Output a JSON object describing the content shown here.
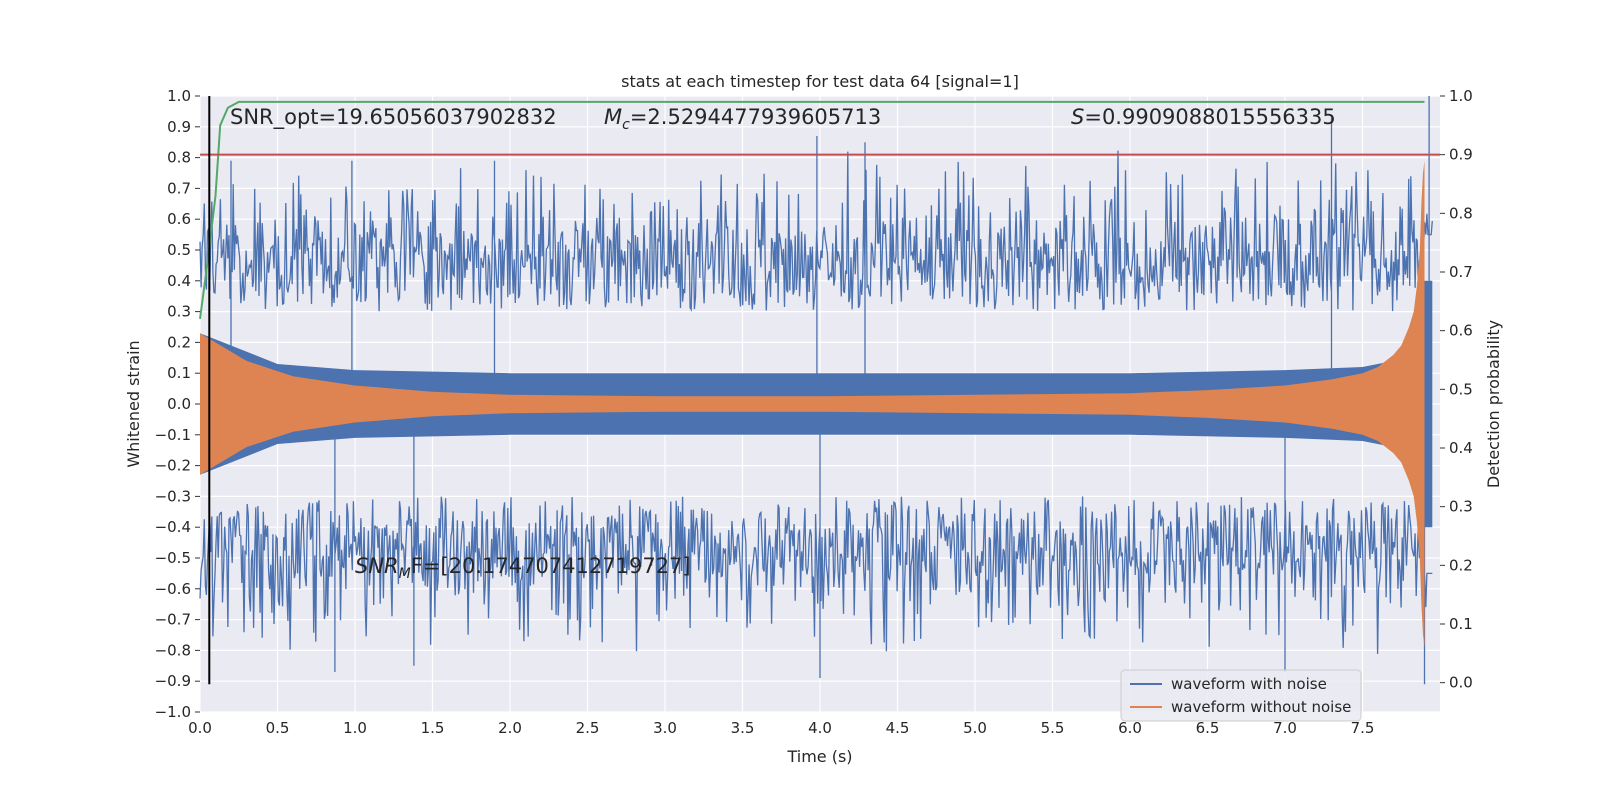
{
  "chart_data": {
    "type": "line",
    "title": "stats at each timestep for test data 64 [signal=1]",
    "xlabel": "Time (s)",
    "ylabel": "Whitened strain",
    "y2label": "Detection probability",
    "xlim": [
      0.0,
      8.0
    ],
    "ylim": [
      -1.0,
      1.0
    ],
    "y2lim": [
      -0.05,
      1.0
    ],
    "x_ticks": [
      0.0,
      0.5,
      1.0,
      1.5,
      2.0,
      2.5,
      3.0,
      3.5,
      4.0,
      4.5,
      5.0,
      5.5,
      6.0,
      6.5,
      7.0,
      7.5
    ],
    "y_ticks": [
      -1.0,
      -0.9,
      -0.8,
      -0.7,
      -0.6,
      -0.5,
      -0.4,
      -0.3,
      -0.2,
      -0.1,
      0.0,
      0.1,
      0.2,
      0.3,
      0.4,
      0.5,
      0.6,
      0.7,
      0.8,
      0.9,
      1.0
    ],
    "y2_ticks": [
      0.0,
      0.1,
      0.2,
      0.3,
      0.4,
      0.5,
      0.6,
      0.7,
      0.8,
      0.9,
      1.0
    ],
    "grid": true,
    "legend_position": "lower-right",
    "series": [
      {
        "name": "waveform with noise",
        "color": "#4c72b0",
        "axis": "left",
        "core_envelope": {
          "x": [
            0.0,
            0.5,
            1.0,
            2.0,
            4.0,
            6.0,
            7.0,
            7.5,
            7.7,
            7.8,
            7.85,
            7.88,
            7.9,
            7.95
          ],
          "y": [
            0.23,
            0.13,
            0.11,
            0.1,
            0.1,
            0.1,
            0.11,
            0.12,
            0.14,
            0.17,
            0.22,
            0.29,
            0.4,
            0.4
          ]
        },
        "noise_peak_range": [
          0.3,
          0.87
        ],
        "notable_peaks": [
          {
            "x": 0.2,
            "y": 0.79
          },
          {
            "x": 0.98,
            "y": 0.79
          },
          {
            "x": 1.9,
            "y": 0.79
          },
          {
            "x": 3.98,
            "y": 0.87
          },
          {
            "x": 4.29,
            "y": 0.85
          },
          {
            "x": 7.3,
            "y": 0.93
          },
          {
            "x": 7.93,
            "y": 1.0
          },
          {
            "x": 0.87,
            "y": -0.87
          },
          {
            "x": 1.38,
            "y": -0.85
          },
          {
            "x": 4.0,
            "y": -0.89
          },
          {
            "x": 7.0,
            "y": -0.87
          },
          {
            "x": 7.9,
            "y": -0.91
          }
        ]
      },
      {
        "name": "waveform without noise",
        "color": "#dd8452",
        "axis": "left",
        "envelope": {
          "x": [
            0.0,
            0.3,
            0.6,
            1.0,
            1.5,
            2.0,
            3.0,
            4.0,
            5.0,
            6.0,
            6.5,
            7.0,
            7.3,
            7.5,
            7.6,
            7.7,
            7.75,
            7.8,
            7.83,
            7.85,
            7.87,
            7.88,
            7.89,
            7.9
          ],
          "y": [
            0.23,
            0.14,
            0.09,
            0.06,
            0.04,
            0.03,
            0.025,
            0.025,
            0.03,
            0.035,
            0.045,
            0.06,
            0.08,
            0.1,
            0.12,
            0.16,
            0.19,
            0.25,
            0.3,
            0.38,
            0.5,
            0.65,
            0.75,
            0.79
          ]
        }
      },
      {
        "name": "",
        "color": "#55a868",
        "axis": "right",
        "x": [
          0.0,
          0.05,
          0.1,
          0.13,
          0.18,
          0.25,
          0.35,
          0.6,
          1.0,
          4.0,
          7.0,
          7.9
        ],
        "y": [
          0.62,
          0.72,
          0.83,
          0.95,
          0.98,
          0.99,
          0.99,
          0.99,
          0.99,
          0.99,
          0.99,
          0.99
        ]
      },
      {
        "name": "",
        "color": "#c44e52",
        "axis": "right",
        "x": [
          0.0,
          8.0
        ],
        "y": [
          0.9,
          0.9
        ]
      }
    ],
    "vline": {
      "x": 0.06,
      "ymin": -0.91,
      "ymax": 1.0,
      "color": "#000000"
    },
    "annotations": {
      "snr_opt": "SNR_opt=19.65056037902832",
      "mc_symbol": "M",
      "mc_sub": "c",
      "mc_value": "=2.5294477939605713",
      "s_symbol": "S",
      "s_value": "=0.9909088015556335",
      "snrmf_symbol": "SNR",
      "snrmf_sub": "M",
      "snrmf_value": "F=[20.174707412719727]"
    }
  }
}
